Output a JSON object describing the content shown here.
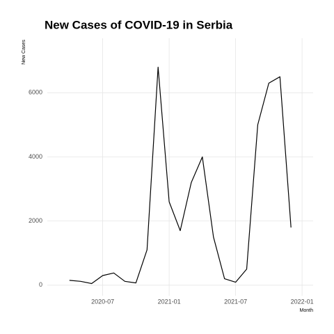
{
  "chart_data": {
    "type": "line",
    "title": "New Cases of COVID-19 in Serbia",
    "x_label": "Month",
    "y_label": "New Cases",
    "x": [
      "2020-04",
      "2020-05",
      "2020-06",
      "2020-07",
      "2020-08",
      "2020-09",
      "2020-10",
      "2020-11",
      "2020-12",
      "2021-01",
      "2021-02",
      "2021-03",
      "2021-04",
      "2021-05",
      "2021-06",
      "2021-07",
      "2021-08",
      "2021-09",
      "2021-10",
      "2021-11",
      "2021-12"
    ],
    "series": [
      {
        "name": "New Cases",
        "color": "#000000",
        "values": [
          150,
          120,
          50,
          300,
          380,
          120,
          70,
          1100,
          6800,
          2600,
          1700,
          3200,
          4000,
          1500,
          200,
          90,
          500,
          5000,
          6300,
          6500,
          1800
        ]
      }
    ],
    "xlim": [
      "2020-02",
      "2022-02"
    ],
    "xticks": [
      "2020-07",
      "2021-01",
      "2021-07",
      "2022-01"
    ],
    "ylim": [
      -330,
      7700
    ],
    "yticks": [
      0,
      2000,
      4000,
      6000
    ],
    "grid": true
  }
}
